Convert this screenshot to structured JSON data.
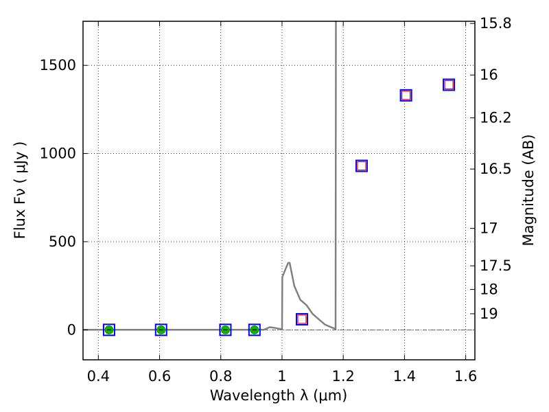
{
  "chart_data": {
    "type": "scatter",
    "xlabel": "Wavelength  λ (μm)",
    "ylabel": "Flux  Fν  ( μJy )",
    "y2label": "Magnitude (AB)",
    "xlim": [
      0.35,
      1.63
    ],
    "ylim": [
      -170,
      1750
    ],
    "x_ticks": [
      0.4,
      0.6,
      0.8,
      1.0,
      1.2,
      1.4,
      1.6
    ],
    "x_tick_labels": [
      "0.4",
      "0.6",
      "0.8",
      "1",
      "1.2",
      "1.4",
      "1.6"
    ],
    "y_ticks": [
      0,
      500,
      1000,
      1500
    ],
    "y_tick_labels": [
      "0",
      "500",
      "1000",
      "1500"
    ],
    "mag_ticks": [
      15.8,
      16,
      16.2,
      16.5,
      17,
      17.5,
      18,
      19
    ],
    "mag_tick_labels": [
      "15.8",
      "16",
      "16.2",
      "16.5",
      "17",
      "17.5",
      "18",
      "19"
    ],
    "grid": true,
    "series": [
      {
        "name": "model spectrum",
        "kind": "line",
        "color": "#808080",
        "x": [
          0.35,
          0.94,
          0.96,
          0.98,
          0.995,
          1.0,
          1.001,
          1.02,
          1.025,
          1.04,
          1.06,
          1.08,
          1.1,
          1.12,
          1.14,
          1.16,
          1.175,
          1.176,
          1.177
        ],
        "y": [
          0,
          0,
          15,
          10,
          5,
          5,
          300,
          380,
          380,
          250,
          170,
          140,
          90,
          60,
          30,
          15,
          5,
          1750,
          1750
        ]
      },
      {
        "name": "observed (blue squares)",
        "kind": "square",
        "color": "#0000ff",
        "x": [
          0.435,
          0.605,
          0.815,
          0.91,
          1.065,
          1.26,
          1.405,
          1.545
        ],
        "y": [
          0,
          0,
          0,
          0,
          60,
          930,
          1330,
          1390
        ]
      },
      {
        "name": "model (red open squares)",
        "kind": "square-small",
        "color": "#ff0000",
        "x": [
          1.065,
          1.26,
          1.405,
          1.545
        ],
        "y": [
          60,
          930,
          1330,
          1390
        ]
      },
      {
        "name": "upper limits (green circles)",
        "kind": "circle",
        "color": "#00bb00",
        "x": [
          0.435,
          0.605,
          0.815,
          0.91
        ],
        "y": [
          0,
          0,
          0,
          0
        ]
      }
    ]
  }
}
